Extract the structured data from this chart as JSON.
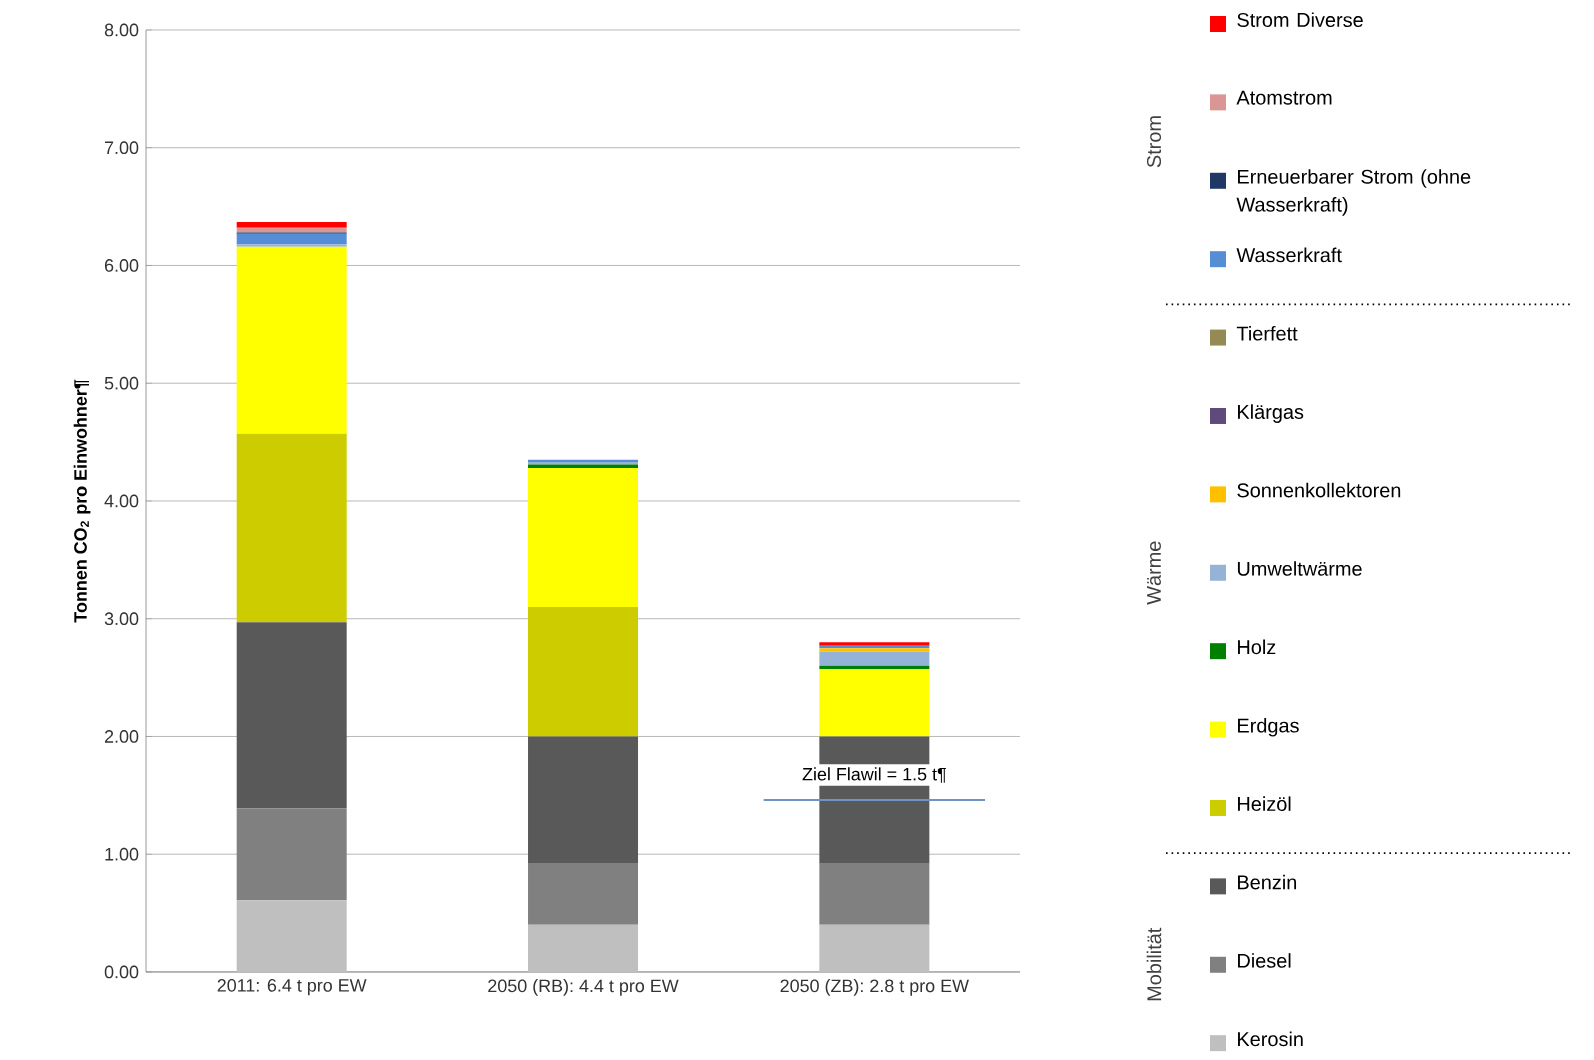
{
  "chart_data": {
    "type": "bar",
    "stacked": true,
    "ylabel": "Tonnen CO$_{2}$ pro Einwohner¶",
    "categories": [
      "2011: 6.4 t pro EW",
      "2050 (RB): 4.4 t pro EW",
      "2050 (ZB): 2.8 t pro EW"
    ],
    "series": [
      {
        "name": "Kerosin",
        "color": "#bfbfbf",
        "values": [
          0.61,
          0.4,
          0.4
        ]
      },
      {
        "name": "Diesel",
        "color": "#808080",
        "values": [
          0.78,
          0.52,
          0.52
        ]
      },
      {
        "name": "Benzin",
        "color": "#595959",
        "values": [
          1.58,
          1.08,
          1.08
        ]
      },
      {
        "name": "Heizöl",
        "color": "#cccc00",
        "values": [
          1.6,
          1.1,
          0
        ]
      },
      {
        "name": "Erdgas",
        "color": "#ffff00",
        "values": [
          1.59,
          1.18,
          0.57
        ]
      },
      {
        "name": "Holz",
        "color": "#008000",
        "values": [
          0,
          0.03,
          0.03
        ]
      },
      {
        "name": "Umweltwärme",
        "color": "#95b3d7",
        "values": [
          0.02,
          0.02,
          0.12
        ]
      },
      {
        "name": "Sonnenkollektoren",
        "color": "#ffc000",
        "values": [
          0,
          0,
          0.03
        ]
      },
      {
        "name": "Klärgas",
        "color": "#604a7b",
        "values": [
          0,
          0,
          0
        ]
      },
      {
        "name": "Tierfett",
        "color": "#948a54",
        "values": [
          0,
          0,
          0
        ]
      },
      {
        "name": "Wasserkraft",
        "color": "#558ed5",
        "values": [
          0.09,
          0.02,
          0.02
        ]
      },
      {
        "name": "Erneuerbarer Strom (ohne Wasserkraft)",
        "color": "#1f3864",
        "values": [
          0.01,
          0,
          0
        ]
      },
      {
        "name": "Atomstrom",
        "color": "#d99694",
        "values": [
          0.04,
          0,
          0
        ]
      },
      {
        "name": "Strom Diverse",
        "color": "#ff0000",
        "values": [
          0.05,
          0,
          0.03
        ]
      }
    ],
    "ylim": [
      0,
      8
    ],
    "yticks": [
      {
        "value": 0,
        "label": "0.00"
      },
      {
        "value": 1,
        "label": "1.00"
      },
      {
        "value": 2,
        "label": "2.00"
      },
      {
        "value": 3,
        "label": "3.00"
      },
      {
        "value": 4,
        "label": "4.00"
      },
      {
        "value": 5,
        "label": "5.00"
      },
      {
        "value": 6,
        "label": "6.00"
      },
      {
        "value": 7,
        "label": "7.00"
      },
      {
        "value": 8,
        "label": "8.00"
      }
    ],
    "grid": "y",
    "legend": "right",
    "ref_lines": [
      {
        "axis": "y",
        "value": 1.46,
        "label": "Ziel Flawil = 1.5 t¶",
        "color": "#6f93c4"
      }
    ],
    "annotations": [
      "Strom",
      "Wärme",
      "Mobilität"
    ]
  }
}
